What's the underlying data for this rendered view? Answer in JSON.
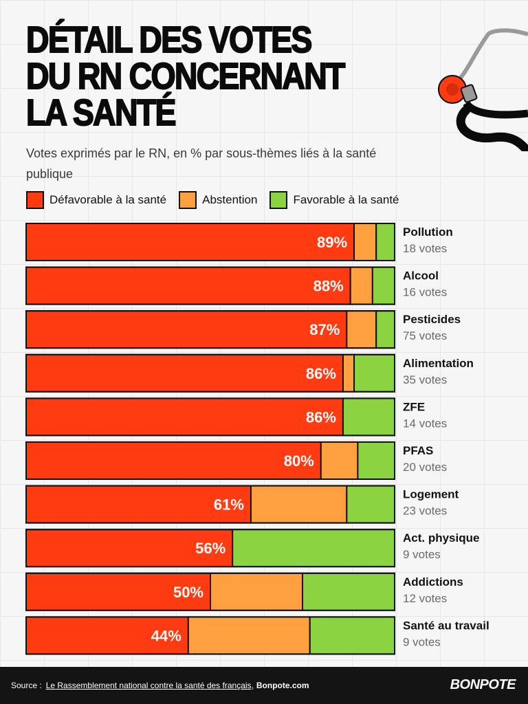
{
  "title_lines": [
    "Détail des votes",
    "du RN concernant",
    "la santé"
  ],
  "subtitle": "Votes exprimés par le RN, en % par sous-thèmes liés à la santé publique",
  "legend": [
    {
      "label": "Défavorable à la santé",
      "color": "#ff3b12"
    },
    {
      "label": "Abstention",
      "color": "#ffa040"
    },
    {
      "label": "Favorable à la santé",
      "color": "#8bd340"
    }
  ],
  "chart_data": {
    "type": "bar",
    "orientation": "horizontal",
    "stacked": true,
    "percent_scale": [
      0,
      100
    ],
    "categories": [
      "Pollution",
      "Alcool",
      "Pesticides",
      "Alimentation",
      "ZFE",
      "PFAS",
      "Logement",
      "Act. physique",
      "Addictions",
      "Santé au travail"
    ],
    "votes": [
      "18 votes",
      "16 votes",
      "75 votes",
      "35 votes",
      "14 votes",
      "20 votes",
      "23 votes",
      "9 votes",
      "12 votes",
      "9 votes"
    ],
    "series": [
      {
        "name": "Défavorable à la santé",
        "color": "#ff3b12",
        "values": [
          89,
          88,
          87,
          86,
          86,
          80,
          61,
          56,
          50,
          44
        ],
        "labels": [
          "89%",
          "88%",
          "87%",
          "86%",
          "86%",
          "80%",
          "61%",
          "56%",
          "50%",
          "44%"
        ]
      },
      {
        "name": "Abstention",
        "color": "#ffa040",
        "values": [
          6,
          6,
          8,
          3,
          0,
          10,
          26,
          0,
          25,
          33
        ]
      },
      {
        "name": "Favorable à la santé",
        "color": "#8bd340",
        "values": [
          5,
          6,
          5,
          11,
          14,
          10,
          13,
          44,
          25,
          23
        ]
      }
    ]
  },
  "footer": {
    "source_label": "Source :",
    "source_text": "Le Rassemblement national contre la santé des français,",
    "site": "Bonpote.com",
    "brand": "BONPOTE"
  },
  "icons": {
    "illustration": "stethoscope-icon",
    "brand": "bonpote-logo"
  }
}
